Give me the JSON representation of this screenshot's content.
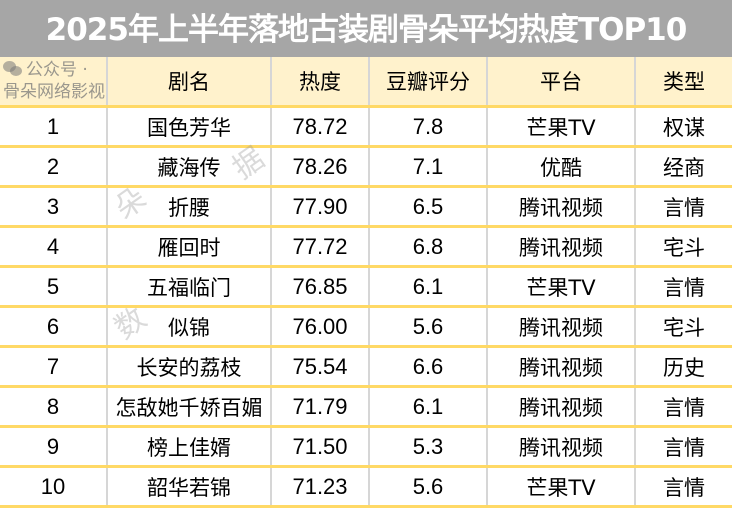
{
  "title": "2025年上半年落地古装剧骨朵平均热度TOP10",
  "columns": [
    "",
    "剧名",
    "热度",
    "豆瓣评分",
    "平台",
    "类型"
  ],
  "rows": [
    [
      "1",
      "国色芳华",
      "78.72",
      "7.8",
      "芒果TV",
      "权谋"
    ],
    [
      "2",
      "藏海传",
      "78.26",
      "7.1",
      "优酷",
      "经商"
    ],
    [
      "3",
      "折腰",
      "77.90",
      "6.5",
      "腾讯视频",
      "言情"
    ],
    [
      "4",
      "雁回时",
      "77.72",
      "6.8",
      "腾讯视频",
      "宅斗"
    ],
    [
      "5",
      "五福临门",
      "76.85",
      "6.1",
      "芒果TV",
      "言情"
    ],
    [
      "6",
      "似锦",
      "76.00",
      "5.6",
      "腾讯视频",
      "宅斗"
    ],
    [
      "7",
      "长安的荔枝",
      "75.54",
      "6.6",
      "腾讯视频",
      "历史"
    ],
    [
      "8",
      "怎敌她千娇百媚",
      "71.79",
      "6.1",
      "腾讯视频",
      "言情"
    ],
    [
      "9",
      "榜上佳婿",
      "71.50",
      "5.3",
      "腾讯视频",
      "言情"
    ],
    [
      "10",
      "韶华若锦",
      "71.23",
      "5.6",
      "芒果TV",
      "言情"
    ]
  ],
  "watermark": {
    "diagonal": [
      "朵",
      "数",
      "据"
    ],
    "footer": "公众号 · 骨朵网络影视",
    "icon": "wechat-icon"
  },
  "colors": {
    "title_bg": "#a6a6a6",
    "header_bg": "#fff2cc",
    "row_border": "#ffd966"
  }
}
